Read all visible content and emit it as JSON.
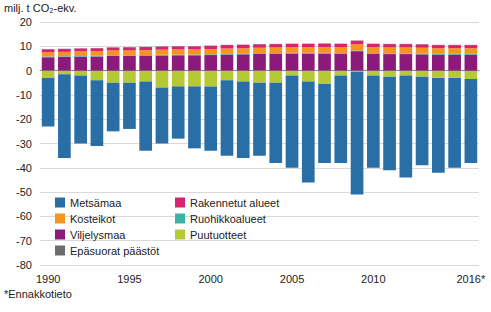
{
  "chart_data": {
    "type": "bar",
    "ylabel": "milj. t CO₂-ekv.",
    "footnote": "*Ennakkotieto",
    "categories": [
      "1990",
      null,
      null,
      null,
      null,
      "1995",
      null,
      null,
      null,
      null,
      "2000",
      null,
      null,
      null,
      null,
      "2005",
      null,
      null,
      null,
      null,
      "2010",
      null,
      null,
      null,
      null,
      null,
      "2016*"
    ],
    "series": [
      {
        "name": "Metsämaa",
        "color": "#2a6ea6",
        "values": [
          -20,
          -34.5,
          -28,
          -27,
          -20,
          -19,
          -28.5,
          -23,
          -21.5,
          -25.5,
          -26.5,
          -31,
          -31.5,
          -30,
          -33,
          -38,
          -41.5,
          -32.5,
          -36,
          -50.5,
          -38,
          -38.5,
          -42,
          -36.5,
          -39,
          -37,
          -34.5
        ]
      },
      {
        "name": "Kosteikot",
        "color": "#f7941d",
        "values": [
          1.8,
          1.8,
          1.9,
          1.9,
          2.0,
          2.0,
          2.0,
          2.1,
          2.1,
          2.1,
          2.2,
          2.2,
          2.2,
          2.3,
          2.3,
          2.3,
          2.3,
          2.4,
          2.4,
          2.5,
          2.4,
          2.4,
          2.4,
          2.4,
          2.3,
          2.3,
          2.3
        ]
      },
      {
        "name": "Viljelysmaa",
        "color": "#8b1a7a",
        "values": [
          5.5,
          5.6,
          5.7,
          5.8,
          6.0,
          6.0,
          6.1,
          6.2,
          6.3,
          6.3,
          6.4,
          6.6,
          6.7,
          6.8,
          6.9,
          7.0,
          7.0,
          7.0,
          6.9,
          8.0,
          6.9,
          6.8,
          6.8,
          6.7,
          6.6,
          6.6,
          6.6
        ]
      },
      {
        "name": "Epäsuorat päästöt",
        "color": "#6d6d6d",
        "values": [
          0.1,
          0.1,
          0.1,
          0.1,
          0.1,
          0.1,
          0.1,
          0.1,
          0.1,
          0.1,
          0.1,
          0.1,
          0.1,
          0.1,
          0.1,
          0.1,
          0.1,
          0.1,
          0.1,
          0.1,
          0.1,
          0.1,
          0.1,
          0.1,
          0.1,
          0.1,
          0.1
        ]
      },
      {
        "name": "Rakennetut alueet",
        "color": "#d6246e",
        "values": [
          1.2,
          1.2,
          1.2,
          1.2,
          1.2,
          1.3,
          1.3,
          1.3,
          1.3,
          1.3,
          1.3,
          1.4,
          1.4,
          1.4,
          1.4,
          1.4,
          1.4,
          1.4,
          1.4,
          1.5,
          1.4,
          1.4,
          1.4,
          1.4,
          1.3,
          1.3,
          1.3
        ]
      },
      {
        "name": "Ruohikkoalueet",
        "color": "#3bb3a6",
        "values": [
          0.3,
          0.3,
          0.3,
          0.3,
          0.3,
          0.3,
          0.3,
          0.3,
          0.3,
          0.3,
          0.3,
          0.3,
          0.3,
          0.3,
          0.3,
          0.3,
          0.3,
          0.3,
          0.3,
          0.3,
          0.3,
          0.3,
          0.3,
          0.3,
          0.3,
          0.3,
          0.3
        ]
      },
      {
        "name": "Puutuotteet",
        "color": "#b5c934",
        "values": [
          -3,
          -1.5,
          -2,
          -4,
          -5,
          -5,
          -4.5,
          -7,
          -6.5,
          -6.5,
          -6.5,
          -4,
          -4.5,
          -5,
          -5,
          -2,
          -4.5,
          -5.5,
          -2,
          -0.5,
          -2,
          -2.5,
          -2,
          -2.5,
          -3,
          -3,
          -3.5
        ]
      }
    ],
    "ylim": [
      -80,
      20
    ],
    "yticks": [
      -80,
      -70,
      -60,
      -50,
      -40,
      -30,
      -20,
      -10,
      0,
      10,
      20
    ],
    "stacked": true,
    "grid": true,
    "legend": "lower left"
  }
}
